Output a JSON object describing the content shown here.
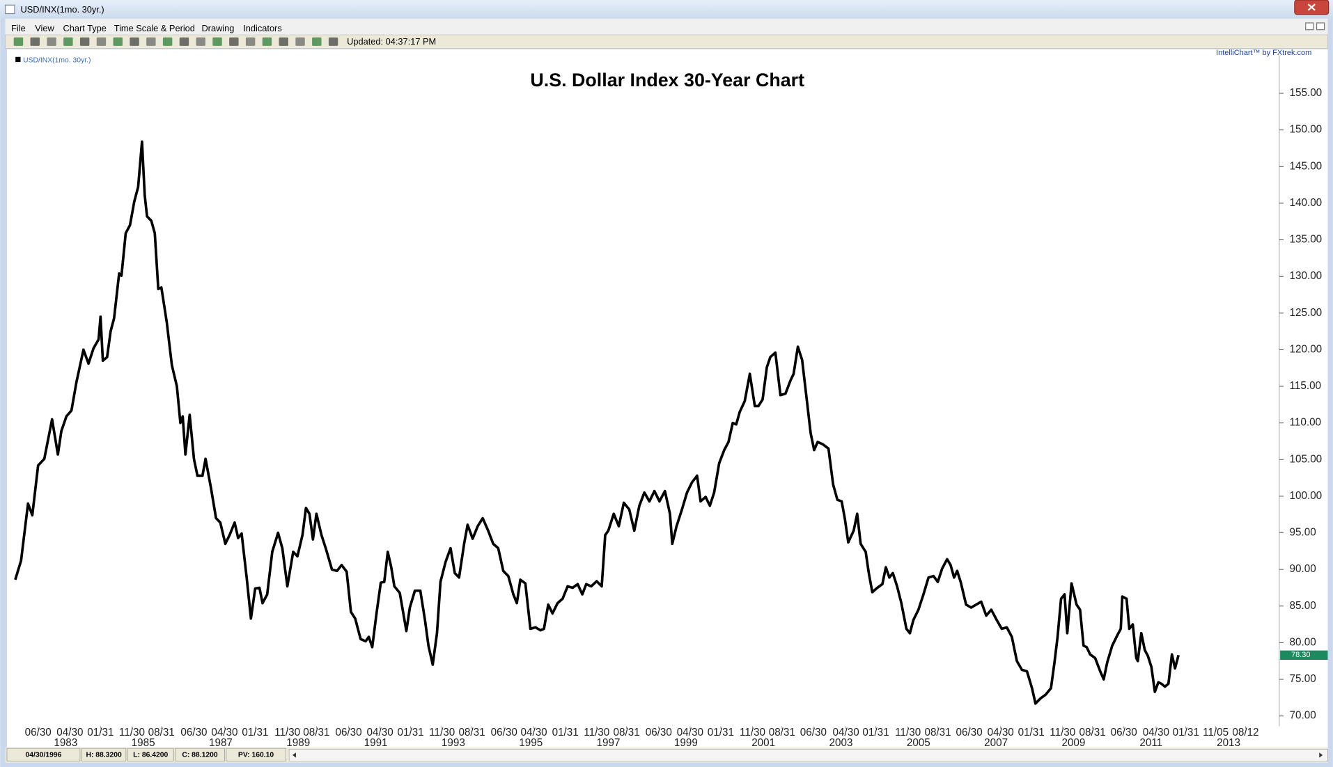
{
  "window": {
    "title": "USD/INX(1mo. 30yr.)"
  },
  "menu": [
    "File",
    "View",
    "Chart Type",
    "Time Scale & Period",
    "Drawing",
    "Indicators"
  ],
  "toolbar": {
    "status": "Updated: 04:37:17 PM"
  },
  "credit": "IntelliChart™ by FXtrek.com",
  "status_bar": [
    "04/30/1996",
    "H: 88.3200",
    "L: 86.4200",
    "C: 88.1200",
    "PV: 160.10"
  ],
  "chart_data": {
    "type": "line",
    "title": "U.S. Dollar Index 30-Year Chart",
    "xlim": [
      1981.66,
      2014.44
    ],
    "ylim": [
      68.6,
      160.2
    ],
    "yticks": [
      {
        "value": 70,
        "label": "70.00"
      },
      {
        "value": 75,
        "label": "75.00"
      },
      {
        "value": 80,
        "label": "80.00"
      },
      {
        "value": 85,
        "label": "85.00"
      },
      {
        "value": 90,
        "label": "90.00"
      },
      {
        "value": 95,
        "label": "95.00"
      },
      {
        "value": 100,
        "label": "100.00"
      },
      {
        "value": 105,
        "label": "105.00"
      },
      {
        "value": 110,
        "label": "110.00"
      },
      {
        "value": 115,
        "label": "115.00"
      },
      {
        "value": 120,
        "label": "120.00"
      },
      {
        "value": 125,
        "label": "125.00"
      },
      {
        "value": 130,
        "label": "130.00"
      },
      {
        "value": 135,
        "label": "135.00"
      },
      {
        "value": 140,
        "label": "140.00"
      },
      {
        "value": 145,
        "label": "145.00"
      },
      {
        "value": 150,
        "label": "150.00"
      },
      {
        "value": 155,
        "label": "155.00"
      }
    ],
    "xticks": [
      {
        "value": 1982.42,
        "label": "06/30"
      },
      {
        "value": 1983.24,
        "label": "04/30"
      },
      {
        "value": 1984.03,
        "label": "01/31"
      },
      {
        "value": 1984.84,
        "label": "11/30"
      },
      {
        "value": 1985.6,
        "label": "08/31"
      },
      {
        "value": 1986.44,
        "label": "06/30"
      },
      {
        "value": 1987.23,
        "label": "04/30"
      },
      {
        "value": 1988.02,
        "label": "01/31"
      },
      {
        "value": 1988.85,
        "label": "11/30"
      },
      {
        "value": 1989.6,
        "label": "08/31"
      },
      {
        "value": 1990.43,
        "label": "06/30"
      },
      {
        "value": 1991.24,
        "label": "04/30"
      },
      {
        "value": 1992.03,
        "label": "01/31"
      },
      {
        "value": 1992.84,
        "label": "11/30"
      },
      {
        "value": 1993.61,
        "label": "08/31"
      },
      {
        "value": 1994.44,
        "label": "06/30"
      },
      {
        "value": 1995.21,
        "label": "04/30"
      },
      {
        "value": 1996.02,
        "label": "01/31"
      },
      {
        "value": 1996.83,
        "label": "11/30"
      },
      {
        "value": 1997.6,
        "label": "08/31"
      },
      {
        "value": 1998.43,
        "label": "06/30"
      },
      {
        "value": 1999.24,
        "label": "04/30"
      },
      {
        "value": 2000.03,
        "label": "01/31"
      },
      {
        "value": 2000.85,
        "label": "11/30"
      },
      {
        "value": 2001.61,
        "label": "08/31"
      },
      {
        "value": 2002.42,
        "label": "06/30"
      },
      {
        "value": 2003.26,
        "label": "04/30"
      },
      {
        "value": 2004.03,
        "label": "01/31"
      },
      {
        "value": 2004.86,
        "label": "11/30"
      },
      {
        "value": 2005.63,
        "label": "08/31"
      },
      {
        "value": 2006.44,
        "label": "06/30"
      },
      {
        "value": 2007.25,
        "label": "04/30"
      },
      {
        "value": 2008.04,
        "label": "01/31"
      },
      {
        "value": 2008.85,
        "label": "11/30"
      },
      {
        "value": 2009.62,
        "label": "08/31"
      },
      {
        "value": 2010.43,
        "label": "06/30"
      },
      {
        "value": 2011.26,
        "label": "04/30"
      },
      {
        "value": 2012.03,
        "label": "01/31"
      },
      {
        "value": 2012.8,
        "label": "11/05"
      },
      {
        "value": 2013.57,
        "label": "08/12"
      }
    ],
    "year_labels": [
      1983,
      1985,
      1987,
      1989,
      1991,
      1993,
      1995,
      1997,
      1999,
      2001,
      2003,
      2005,
      2007,
      2009,
      2011,
      2013
    ],
    "current_marker": {
      "value": 78.3,
      "label": "78.30",
      "color": "#1b8a5e"
    },
    "series": [
      {
        "name": "USD/INX(1mo. 30yr.)",
        "color": "#000000",
        "x": [
          1981.83,
          1981.98,
          1982.16,
          1982.27,
          1982.42,
          1982.58,
          1982.78,
          1982.93,
          1983.02,
          1983.15,
          1983.28,
          1983.41,
          1983.59,
          1983.72,
          1983.85,
          1983.98,
          1984.03,
          1984.09,
          1984.2,
          1984.29,
          1984.38,
          1984.51,
          1984.57,
          1984.68,
          1984.79,
          1984.9,
          1985.0,
          1985.1,
          1985.17,
          1985.23,
          1985.34,
          1985.43,
          1985.52,
          1985.6,
          1985.74,
          1985.87,
          1986.0,
          1986.09,
          1986.15,
          1986.22,
          1986.33,
          1986.44,
          1986.53,
          1986.66,
          1986.74,
          1986.88,
          1987.01,
          1987.12,
          1987.25,
          1987.36,
          1987.49,
          1987.58,
          1987.67,
          1987.8,
          1987.91,
          1988.02,
          1988.13,
          1988.21,
          1988.33,
          1988.46,
          1988.61,
          1988.72,
          1988.85,
          1989.0,
          1989.11,
          1989.24,
          1989.33,
          1989.42,
          1989.51,
          1989.6,
          1989.73,
          1989.84,
          1990.0,
          1990.13,
          1990.25,
          1990.38,
          1990.49,
          1990.6,
          1990.74,
          1990.87,
          1990.95,
          1991.04,
          1991.15,
          1991.26,
          1991.35,
          1991.44,
          1991.53,
          1991.61,
          1991.75,
          1991.92,
          1992.01,
          1992.14,
          1992.28,
          1992.4,
          1992.49,
          1992.6,
          1992.71,
          1992.8,
          1992.93,
          1993.06,
          1993.17,
          1993.28,
          1993.41,
          1993.5,
          1993.63,
          1993.76,
          1993.89,
          1994.03,
          1994.16,
          1994.29,
          1994.42,
          1994.55,
          1994.68,
          1994.77,
          1994.86,
          1994.99,
          1995.12,
          1995.25,
          1995.38,
          1995.47,
          1995.58,
          1995.69,
          1995.82,
          1995.95,
          1996.08,
          1996.21,
          1996.34,
          1996.46,
          1996.56,
          1996.69,
          1996.83,
          1996.96,
          1997.05,
          1997.13,
          1997.27,
          1997.4,
          1997.53,
          1997.67,
          1997.8,
          1997.93,
          1998.06,
          1998.19,
          1998.32,
          1998.45,
          1998.59,
          1998.72,
          1998.78,
          1998.89,
          1999.03,
          1999.16,
          1999.29,
          1999.42,
          1999.51,
          1999.64,
          1999.75,
          1999.86,
          1999.99,
          2000.12,
          2000.23,
          2000.34,
          2000.43,
          2000.52,
          2000.65,
          2000.78,
          2000.91,
          2001.0,
          2001.11,
          2001.22,
          2001.31,
          2001.44,
          2001.57,
          2001.7,
          2001.83,
          2001.91,
          2002.02,
          2002.13,
          2002.26,
          2002.35,
          2002.44,
          2002.53,
          2002.66,
          2002.81,
          2002.93,
          2003.04,
          2003.15,
          2003.23,
          2003.32,
          2003.46,
          2003.55,
          2003.64,
          2003.77,
          2003.85,
          2003.94,
          2004.07,
          2004.2,
          2004.29,
          2004.38,
          2004.47,
          2004.58,
          2004.69,
          2004.82,
          2004.91,
          2005.0,
          2005.13,
          2005.26,
          2005.39,
          2005.52,
          2005.63,
          2005.74,
          2005.87,
          2005.96,
          2006.05,
          2006.13,
          2006.22,
          2006.36,
          2006.49,
          2006.62,
          2006.75,
          2006.88,
          2007.01,
          2007.15,
          2007.28,
          2007.41,
          2007.54,
          2007.67,
          2007.8,
          2007.93,
          2008.06,
          2008.15,
          2008.28,
          2008.41,
          2008.55,
          2008.64,
          2008.72,
          2008.81,
          2008.9,
          2008.97,
          2009.08,
          2009.21,
          2009.3,
          2009.39,
          2009.47,
          2009.56,
          2009.69,
          2009.82,
          2009.91,
          2010.0,
          2010.13,
          2010.26,
          2010.35,
          2010.39,
          2010.5,
          2010.57,
          2010.66,
          2010.75,
          2010.79,
          2010.88,
          2010.97,
          2011.05,
          2011.14,
          2011.23,
          2011.32,
          2011.4,
          2011.49,
          2011.58,
          2011.67,
          2011.75,
          2011.84
        ],
        "values": [
          88.6,
          91.2,
          99.0,
          97.4,
          104.2,
          105.1,
          110.5,
          105.7,
          108.9,
          110.9,
          111.7,
          115.6,
          120.0,
          118.1,
          120.2,
          121.4,
          124.5,
          118.5,
          119.0,
          122.5,
          124.3,
          130.4,
          130.1,
          135.9,
          137.0,
          140.2,
          142.2,
          148.4,
          141.1,
          138.2,
          137.6,
          135.9,
          128.3,
          128.5,
          123.7,
          117.9,
          115.0,
          110.0,
          110.9,
          105.7,
          111.1,
          105.1,
          102.8,
          102.8,
          105.1,
          101.1,
          97.0,
          96.4,
          93.5,
          94.7,
          96.4,
          94.3,
          94.9,
          88.9,
          83.3,
          87.4,
          87.5,
          85.4,
          86.6,
          92.4,
          95.0,
          92.9,
          87.7,
          92.4,
          91.8,
          94.7,
          98.4,
          97.6,
          94.1,
          97.6,
          94.7,
          92.9,
          90.0,
          89.8,
          90.6,
          89.7,
          84.2,
          83.3,
          80.5,
          80.2,
          80.8,
          79.4,
          84.0,
          88.2,
          88.3,
          92.4,
          90.3,
          87.7,
          86.8,
          81.6,
          84.8,
          87.1,
          87.1,
          83.1,
          79.6,
          77.0,
          81.3,
          88.3,
          91.0,
          92.9,
          89.5,
          88.9,
          93.5,
          96.1,
          94.2,
          95.9,
          97.0,
          95.3,
          93.5,
          92.9,
          89.8,
          89.1,
          86.6,
          85.4,
          88.6,
          88.1,
          81.9,
          82.1,
          81.7,
          81.9,
          85.2,
          84.0,
          85.4,
          86.0,
          87.7,
          87.5,
          88.0,
          86.6,
          88.0,
          87.7,
          88.4,
          87.7,
          94.7,
          95.3,
          97.6,
          95.9,
          99.1,
          98.2,
          95.3,
          98.7,
          100.5,
          99.3,
          100.7,
          99.3,
          100.7,
          97.6,
          93.5,
          95.9,
          98.2,
          100.5,
          101.9,
          102.8,
          99.3,
          99.9,
          98.7,
          100.5,
          104.5,
          106.3,
          107.4,
          110.0,
          109.8,
          111.5,
          113.0,
          116.7,
          112.3,
          112.3,
          113.2,
          117.6,
          119.0,
          119.6,
          113.8,
          114.0,
          115.8,
          116.7,
          120.4,
          118.6,
          112.7,
          108.6,
          106.3,
          107.4,
          107.1,
          106.5,
          101.6,
          99.5,
          99.3,
          97.0,
          93.7,
          95.3,
          97.6,
          93.5,
          92.4,
          89.5,
          86.9,
          87.5,
          88.0,
          90.3,
          88.9,
          89.5,
          87.7,
          85.4,
          81.9,
          81.3,
          83.1,
          84.5,
          86.6,
          88.9,
          89.1,
          88.3,
          90.1,
          91.4,
          90.6,
          88.9,
          89.8,
          88.3,
          85.2,
          84.8,
          85.2,
          85.6,
          83.7,
          84.5,
          83.1,
          81.9,
          82.1,
          80.8,
          77.5,
          76.3,
          76.1,
          73.8,
          71.7,
          72.4,
          72.9,
          73.8,
          77.3,
          80.8,
          86.0,
          86.6,
          81.3,
          88.1,
          85.2,
          84.5,
          79.6,
          79.4,
          78.4,
          77.9,
          76.1,
          75.0,
          77.3,
          79.6,
          81.0,
          81.9,
          86.3,
          86.0,
          81.9,
          82.5,
          77.9,
          77.5,
          81.3,
          79.0,
          78.2,
          76.7,
          73.3,
          74.6,
          74.4,
          74.0,
          74.4,
          78.4,
          76.5,
          78.3
        ]
      }
    ]
  }
}
